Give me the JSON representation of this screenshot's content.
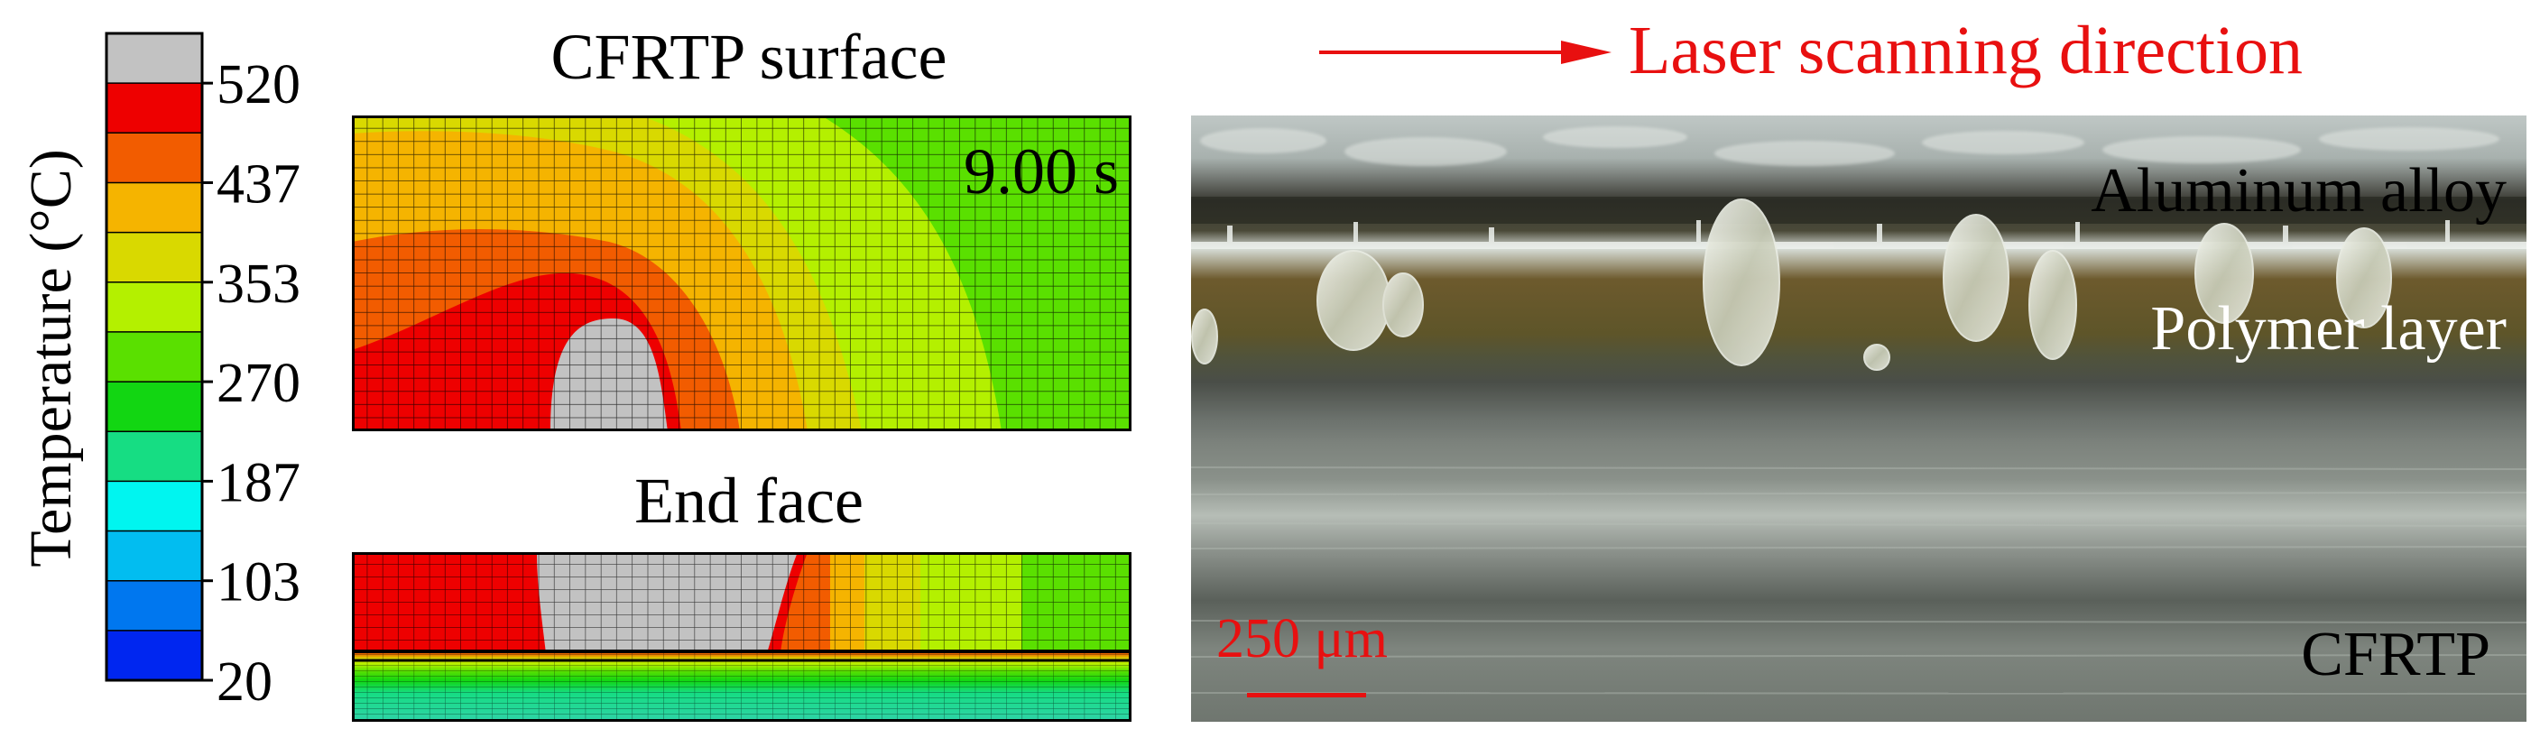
{
  "colorbar": {
    "title": "Temperature (°C)",
    "tick_labels": [
      "520",
      "437",
      "353",
      "270",
      "187",
      "103",
      "20"
    ],
    "band_colors": [
      "#c2c2c2",
      "#ee0000",
      "#f25c00",
      "#f5b400",
      "#d9d900",
      "#b4f000",
      "#5ae000",
      "#12d612",
      "#16dd83",
      "#00f5f0",
      "#02bdf0",
      "#0077ef",
      "#0026f0"
    ]
  },
  "surface_panel": {
    "title": "CFRTP surface",
    "time_label": "9.00 s"
  },
  "end_face_panel": {
    "title": "End face"
  },
  "micrograph": {
    "direction_label": "Laser scanning direction",
    "direction_color": "#e81010",
    "labels": {
      "aluminum": "Aluminum alloy",
      "polymer": "Polymer layer",
      "cfrtp": "CFRTP"
    },
    "scale_bar": "250 μm"
  }
}
